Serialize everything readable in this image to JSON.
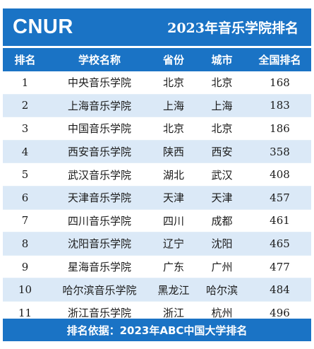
{
  "header": {
    "brand": "CNUR",
    "title": "2023年音乐学院排名"
  },
  "columns": [
    "排名",
    "学校名称",
    "省份",
    "城市",
    "全国排名"
  ],
  "rows": [
    {
      "rank": "1",
      "school": "中央音乐学院",
      "province": "北京",
      "city": "北京",
      "national_rank": "168"
    },
    {
      "rank": "2",
      "school": "上海音乐学院",
      "province": "上海",
      "city": "上海",
      "national_rank": "183"
    },
    {
      "rank": "3",
      "school": "中国音乐学院",
      "province": "北京",
      "city": "北京",
      "national_rank": "186"
    },
    {
      "rank": "4",
      "school": "西安音乐学院",
      "province": "陕西",
      "city": "西安",
      "national_rank": "358"
    },
    {
      "rank": "5",
      "school": "武汉音乐学院",
      "province": "湖北",
      "city": "武汉",
      "national_rank": "408"
    },
    {
      "rank": "6",
      "school": "天津音乐学院",
      "province": "天津",
      "city": "天津",
      "national_rank": "457"
    },
    {
      "rank": "7",
      "school": "四川音乐学院",
      "province": "四川",
      "city": "成都",
      "national_rank": "461"
    },
    {
      "rank": "8",
      "school": "沈阳音乐学院",
      "province": "辽宁",
      "city": "沈阳",
      "national_rank": "465"
    },
    {
      "rank": "9",
      "school": "星海音乐学院",
      "province": "广东",
      "city": "广州",
      "national_rank": "477"
    },
    {
      "rank": "10",
      "school": "哈尔滨音乐学院",
      "province": "黑龙江",
      "city": "哈尔滨",
      "national_rank": "484"
    },
    {
      "rank": "11",
      "school": "浙江音乐学院",
      "province": "浙江",
      "city": "杭州",
      "national_rank": "496"
    }
  ],
  "footer": {
    "text": "排名依据：2023年ABC中国大学排名"
  },
  "colors": {
    "primary": "#1a73c5",
    "row_alt": "#dbe9f7",
    "row_base": "#ffffff"
  }
}
